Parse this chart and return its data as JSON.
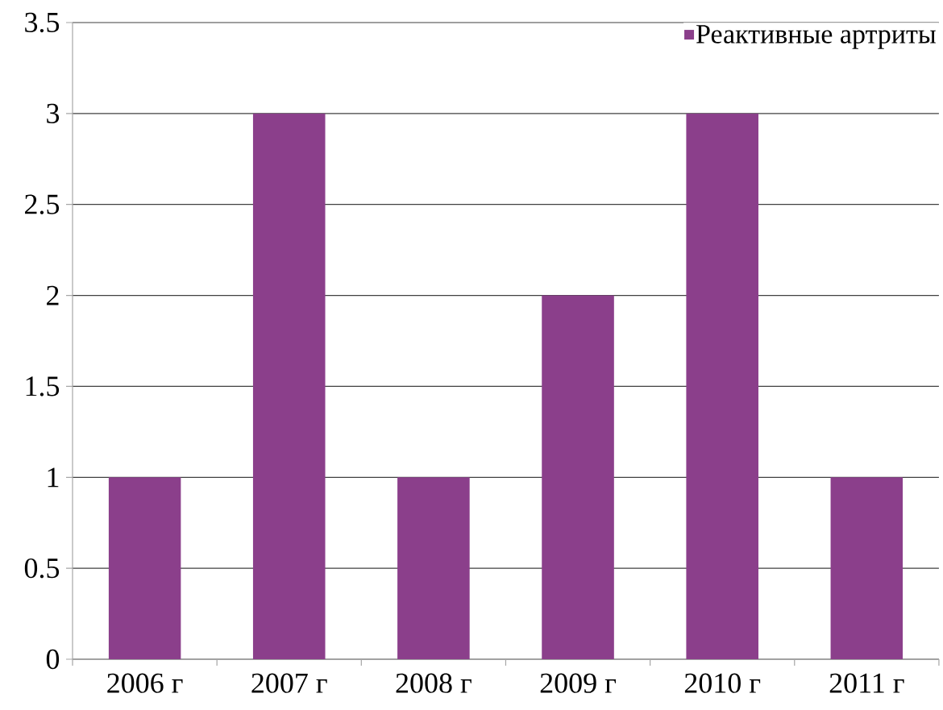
{
  "chart_data": {
    "type": "bar",
    "categories": [
      "2006 г",
      "2007 г",
      "2008 г",
      "2009 г",
      "2010 г",
      "2011 г"
    ],
    "series": [
      {
        "name": "Реактивные артриты",
        "color": "#8b3f8b",
        "values": [
          1,
          3,
          1,
          2,
          3,
          1
        ]
      }
    ],
    "ylim": [
      0,
      3.5
    ],
    "yticks": [
      0,
      0.5,
      1,
      1.5,
      2,
      2.5,
      3,
      3.5
    ],
    "grid": "y",
    "legend": "top right"
  }
}
